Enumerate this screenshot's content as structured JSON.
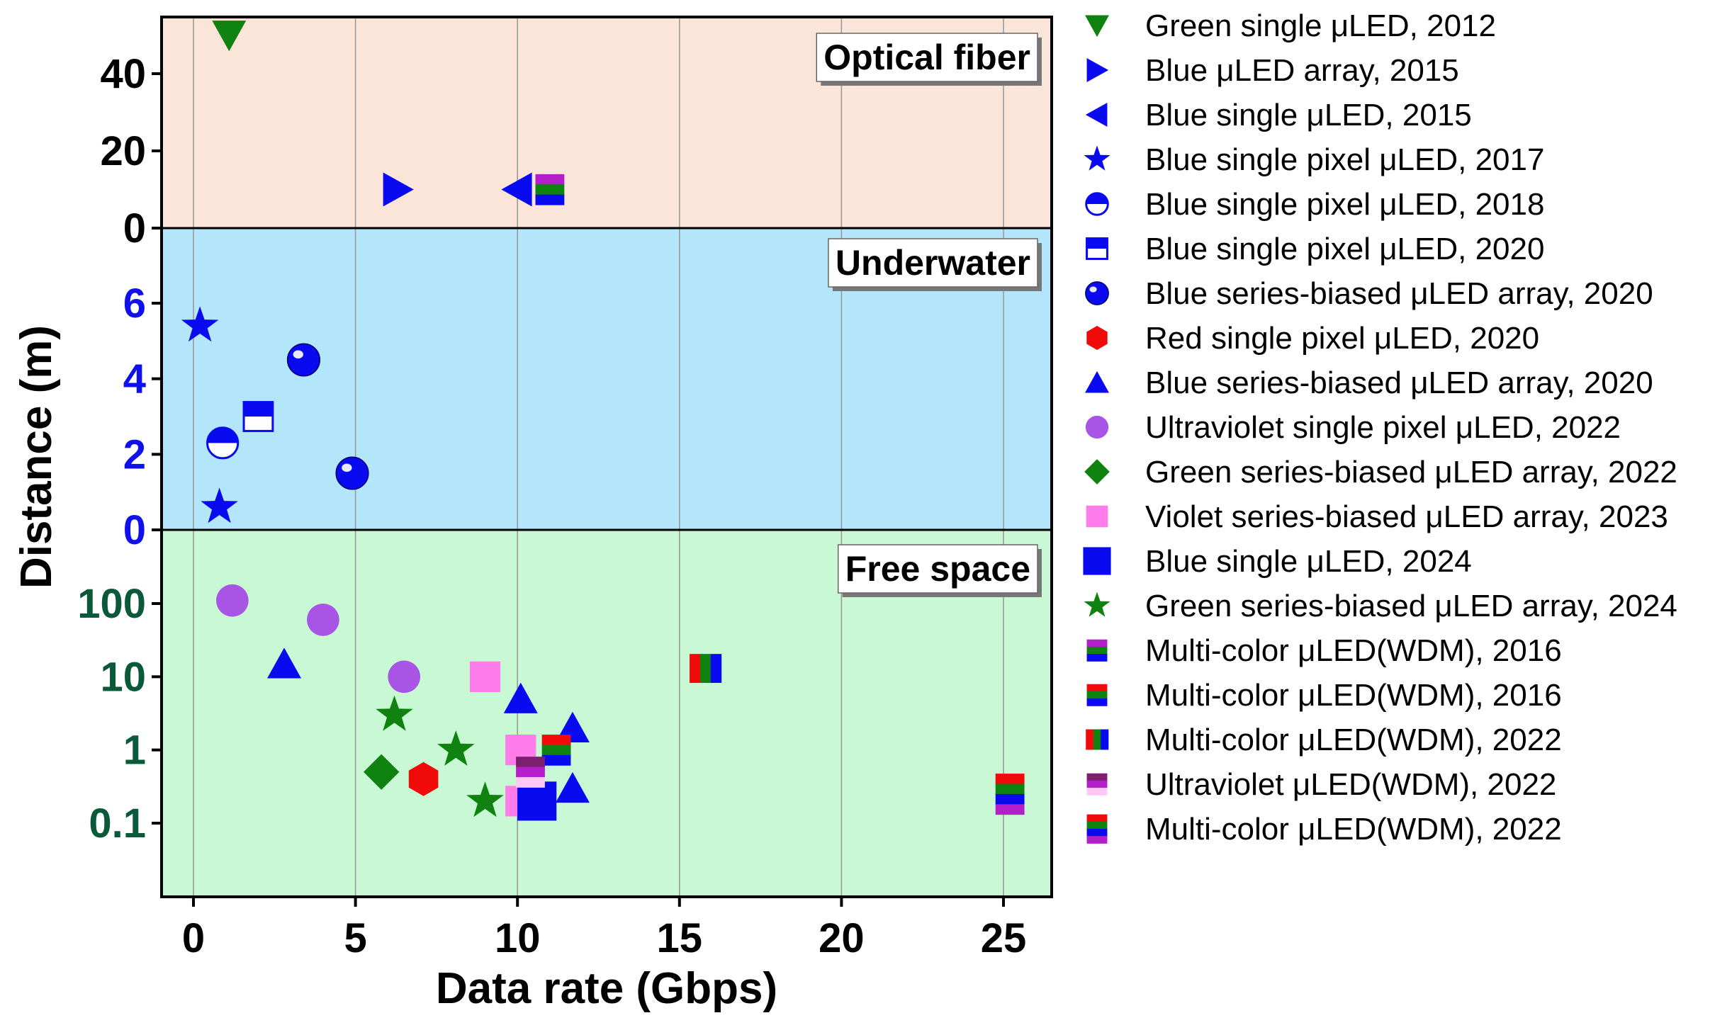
{
  "chart_data": {
    "type": "scatter",
    "xlabel": "Data rate (Gbps)",
    "ylabel": "Distance (m)",
    "xlim": [
      -1,
      26.5
    ],
    "xticks": [
      "0",
      "5",
      "10",
      "15",
      "20",
      "25"
    ],
    "grid": "vertical",
    "legend_position": "right",
    "colors": {
      "blue": "#0a0af0",
      "green": "#0f820f",
      "red": "#f00a0a",
      "purple": "#b41eca",
      "violet": "#ff7dea",
      "lavender": "#a855e6",
      "darkpurple": "#7d1e6e",
      "lightpink": "#ffc8f5",
      "fiber_bg": "#fbe5d8",
      "water_bg": "#b3e6fa",
      "free_bg": "#c8f8d4"
    },
    "panels": [
      {
        "name": "Optical fiber",
        "scale": "linear",
        "ylim": [
          0,
          55
        ],
        "yticks": [
          "0",
          "20",
          "40"
        ],
        "tick_color": "#000000"
      },
      {
        "name": "Underwater",
        "scale": "linear",
        "ylim": [
          0,
          8
        ],
        "yticks": [
          "0",
          "2",
          "4",
          "6"
        ],
        "tick_color": "#1010ee"
      },
      {
        "name": "Free space",
        "scale": "log",
        "ylim": [
          0.01,
          1000
        ],
        "yticks": [
          "0.1",
          "1",
          "10",
          "100"
        ],
        "tick_color": "#0a5a3a"
      }
    ],
    "series": [
      {
        "name": "Green single μLED, 2012",
        "marker": "tri-down",
        "colors": [
          "green"
        ],
        "points": [
          {
            "panel": 0,
            "x": 1.1,
            "y": 50
          }
        ]
      },
      {
        "name": "Blue μLED array, 2015",
        "marker": "tri-right",
        "colors": [
          "blue"
        ],
        "points": [
          {
            "panel": 0,
            "x": 6.3,
            "y": 10
          }
        ]
      },
      {
        "name": "Blue single μLED, 2015",
        "marker": "tri-left",
        "colors": [
          "blue"
        ],
        "points": [
          {
            "panel": 0,
            "x": 10.0,
            "y": 10
          }
        ]
      },
      {
        "name": "Blue single pixel μLED, 2017",
        "marker": "star",
        "colors": [
          "blue"
        ],
        "points": [
          {
            "panel": 1,
            "x": 0.2,
            "y": 5.4
          },
          {
            "panel": 1,
            "x": 0.8,
            "y": 0.6
          }
        ]
      },
      {
        "name": "Blue single pixel μLED, 2018",
        "marker": "half-circle",
        "colors": [
          "blue"
        ],
        "points": [
          {
            "panel": 1,
            "x": 0.9,
            "y": 2.3
          }
        ]
      },
      {
        "name": "Blue single pixel μLED, 2020",
        "marker": "half-square",
        "colors": [
          "blue"
        ],
        "points": [
          {
            "panel": 1,
            "x": 2.0,
            "y": 3.0
          }
        ]
      },
      {
        "name": "Blue series-biased μLED array, 2020",
        "marker": "sphere",
        "colors": [
          "blue"
        ],
        "points": [
          {
            "panel": 1,
            "x": 3.4,
            "y": 4.5
          },
          {
            "panel": 1,
            "x": 4.9,
            "y": 1.5
          }
        ]
      },
      {
        "name": "Red single pixel μLED, 2020",
        "marker": "hexagon",
        "colors": [
          "red"
        ],
        "points": [
          {
            "panel": 2,
            "x": 7.1,
            "y": 0.4
          }
        ]
      },
      {
        "name": "Blue series-biased μLED array, 2020",
        "marker": "tri-up",
        "colors": [
          "blue"
        ],
        "points": [
          {
            "panel": 2,
            "x": 2.8,
            "y": 15
          },
          {
            "panel": 2,
            "x": 10.1,
            "y": 5
          },
          {
            "panel": 2,
            "x": 11.7,
            "y": 2
          },
          {
            "panel": 2,
            "x": 11.7,
            "y": 0.3
          }
        ]
      },
      {
        "name": "Ultraviolet single pixel μLED, 2022",
        "marker": "circle",
        "colors": [
          "lavender"
        ],
        "points": [
          {
            "panel": 2,
            "x": 1.2,
            "y": 110
          },
          {
            "panel": 2,
            "x": 4.0,
            "y": 60
          },
          {
            "panel": 2,
            "x": 6.5,
            "y": 10
          }
        ]
      },
      {
        "name": "Green series-biased μLED array, 2022",
        "marker": "diamond",
        "colors": [
          "green"
        ],
        "points": [
          {
            "panel": 2,
            "x": 5.8,
            "y": 0.5
          }
        ]
      },
      {
        "name": "Violet series-biased μLED array, 2023",
        "marker": "square",
        "colors": [
          "violet"
        ],
        "points": [
          {
            "panel": 2,
            "x": 9.0,
            "y": 10
          },
          {
            "panel": 2,
            "x": 10.1,
            "y": 1
          },
          {
            "panel": 2,
            "x": 10.1,
            "y": 0.2
          }
        ]
      },
      {
        "name": "Blue single μLED, 2024",
        "marker": "square-big",
        "colors": [
          "blue"
        ],
        "points": [
          {
            "panel": 2,
            "x": 10.6,
            "y": 0.2
          }
        ]
      },
      {
        "name": "Green series-biased μLED array, 2024",
        "marker": "star",
        "colors": [
          "green"
        ],
        "points": [
          {
            "panel": 2,
            "x": 6.2,
            "y": 3
          },
          {
            "panel": 2,
            "x": 8.1,
            "y": 1
          },
          {
            "panel": 2,
            "x": 9.0,
            "y": 0.2
          }
        ]
      },
      {
        "name": "Multi-color μLED(WDM), 2016",
        "marker": "stack-v",
        "colors": [
          "purple",
          "green",
          "blue"
        ],
        "points": [
          {
            "panel": 0,
            "x": 11.0,
            "y": 10
          }
        ]
      },
      {
        "name": "Multi-color μLED(WDM), 2016",
        "marker": "stack-v",
        "colors": [
          "red",
          "green",
          "blue"
        ],
        "points": [
          {
            "panel": 2,
            "x": 11.2,
            "y": 1
          }
        ]
      },
      {
        "name": "Multi-color μLED(WDM), 2022",
        "marker": "stack-h",
        "colors": [
          "red",
          "green",
          "blue"
        ],
        "points": [
          {
            "panel": 2,
            "x": 15.8,
            "y": 13
          }
        ]
      },
      {
        "name": "Ultraviolet μLED(WDM), 2022",
        "marker": "stack-v",
        "colors": [
          "darkpurple",
          "purple",
          "lightpink"
        ],
        "points": [
          {
            "panel": 2,
            "x": 10.4,
            "y": 0.5
          }
        ]
      },
      {
        "name": "Multi-color μLED(WDM), 2022",
        "marker": "stack-v4",
        "colors": [
          "red",
          "green",
          "blue",
          "purple"
        ],
        "points": [
          {
            "panel": 2,
            "x": 25.2,
            "y": 0.25
          }
        ]
      }
    ]
  }
}
